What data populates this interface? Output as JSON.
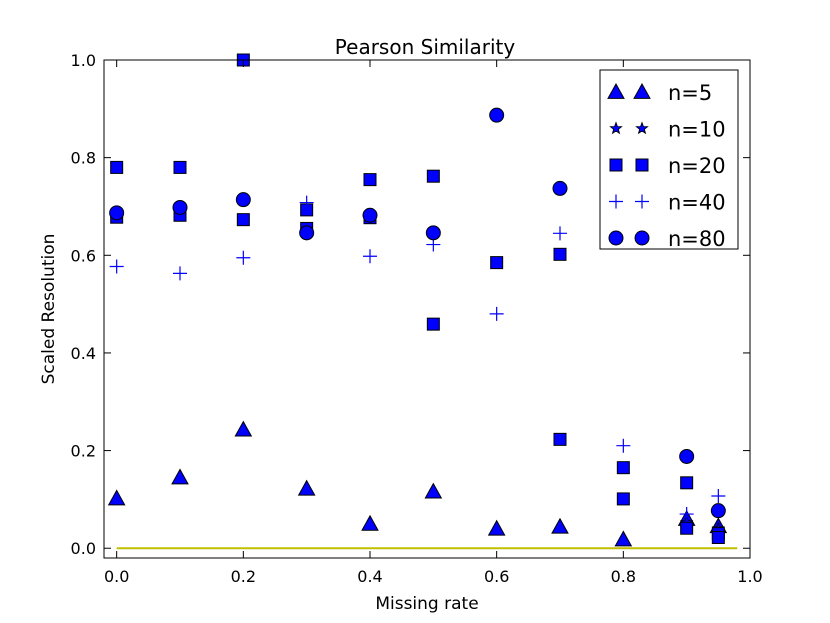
{
  "chart_data": {
    "type": "scatter",
    "title": "Pearson Similarity",
    "xlabel": "Missing rate",
    "ylabel": "Scaled Resolution",
    "xlim": [
      -0.02,
      1.0
    ],
    "ylim": [
      -0.02,
      1.0
    ],
    "xticks": [
      "0.0",
      "0.2",
      "0.4",
      "0.6",
      "0.8",
      "1.0"
    ],
    "yticks": [
      "0.0",
      "0.2",
      "0.4",
      "0.6",
      "0.8",
      "1.0"
    ],
    "legend_position": "top-right",
    "colors": {
      "marker_fill": "#0000ff",
      "marker_edge": "#000000",
      "plus": "#0000ff",
      "baseline": "#bfbf00"
    },
    "series": [
      {
        "name": "n=5",
        "marker": "triangle",
        "x": [
          0.0,
          0.1,
          0.2,
          0.3,
          0.4,
          0.5,
          0.6,
          0.7,
          0.8,
          0.9,
          0.95
        ],
        "y": [
          0.102,
          0.145,
          0.243,
          0.122,
          0.05,
          0.116,
          0.04,
          0.044,
          0.018,
          0.06,
          0.045
        ]
      },
      {
        "name": "n=10",
        "marker": "star",
        "x": [
          0.9,
          0.95
        ],
        "y": [
          0.053,
          0.04
        ]
      },
      {
        "name": "n=20",
        "marker": "square",
        "x": [
          0.0,
          0.0,
          0.1,
          0.1,
          0.2,
          0.2,
          0.3,
          0.3,
          0.4,
          0.4,
          0.5,
          0.5,
          0.6,
          0.7,
          0.7,
          0.8,
          0.8,
          0.9,
          0.9,
          0.95,
          0.95
        ],
        "y": [
          0.78,
          0.678,
          0.78,
          0.682,
          1.0,
          0.673,
          0.693,
          0.655,
          0.755,
          0.677,
          0.762,
          0.459,
          0.585,
          0.602,
          0.223,
          0.165,
          0.101,
          0.134,
          0.041,
          0.03,
          0.022
        ]
      },
      {
        "name": "n=40",
        "marker": "plus",
        "x": [
          0.0,
          0.1,
          0.2,
          0.3,
          0.4,
          0.5,
          0.6,
          0.7,
          0.8,
          0.9,
          0.95
        ],
        "y": [
          0.577,
          0.563,
          0.595,
          0.708,
          0.598,
          0.622,
          0.48,
          0.645,
          0.21,
          0.07,
          0.107
        ]
      },
      {
        "name": "n=80",
        "marker": "circle",
        "x": [
          0.0,
          0.1,
          0.2,
          0.3,
          0.4,
          0.5,
          0.6,
          0.7,
          0.9,
          0.95
        ],
        "y": [
          0.687,
          0.698,
          0.714,
          0.646,
          0.682,
          0.646,
          0.887,
          0.737,
          0.188,
          0.077
        ]
      }
    ],
    "baseline": {
      "y": 0.0,
      "x": [
        0.0,
        0.98
      ]
    }
  }
}
